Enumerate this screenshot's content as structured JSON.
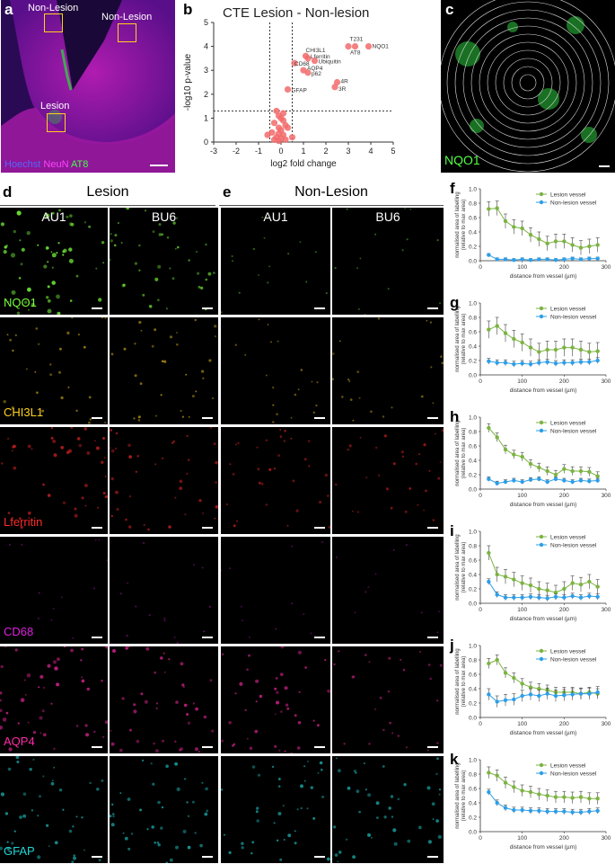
{
  "panel_a": {
    "letter": "a",
    "regions": [
      "Non-Lesion",
      "Non-Lesion",
      "Lesion"
    ],
    "legend": [
      "Hoechst",
      "NeuN",
      "AT8"
    ],
    "legend_colors": [
      "#3a4bff",
      "#ff33ff",
      "#33ee33"
    ]
  },
  "panel_b": {
    "letter": "b",
    "title": "CTE Lesion - Non-lesion",
    "point_labels": [
      "T231",
      "NQO1",
      "AT8",
      "CHI3L1",
      "Lferritin",
      "Ubiquitin",
      "CD68",
      "AQP4",
      "p62",
      "GFAP",
      "4R",
      "3R"
    ]
  },
  "panel_c": {
    "letter": "c",
    "label": "NQO1"
  },
  "panel_d": {
    "letter": "d",
    "header": "Lesion",
    "cols": [
      "AU1",
      "BU6"
    ]
  },
  "panel_e": {
    "letter": "e",
    "header": "Non-Lesion",
    "cols": [
      "AU1",
      "BU6"
    ]
  },
  "rows": [
    {
      "marker": "NQO1",
      "color": "#7cff3c"
    },
    {
      "marker": "CHI3L1",
      "color": "#ffd21e"
    },
    {
      "marker": "Lferritin",
      "color": "#ff2a2a"
    },
    {
      "marker": "CD68",
      "color": "#e020e0"
    },
    {
      "marker": "AQP4",
      "color": "#ff2aa8"
    },
    {
      "marker": "GFAP",
      "color": "#22d7d7"
    }
  ],
  "line_panels": {
    "letters": [
      "f",
      "g",
      "h",
      "i",
      "j",
      "k"
    ],
    "legend": [
      "Lesion vessel",
      "Non-lesion vessel"
    ],
    "colors": [
      "#7cb342",
      "#2d9ee8"
    ]
  },
  "chart_data": [
    {
      "type": "scatter",
      "title": "CTE Lesion - Non-lesion",
      "xlabel": "log2 fold change",
      "ylabel": "-log10 p-value",
      "xlim": [
        -3,
        5
      ],
      "ylim": [
        0,
        5
      ],
      "xticks": [
        "-3",
        "-2",
        "-1",
        "0",
        "1",
        "2",
        "3",
        "4",
        "5"
      ],
      "yticks": [
        "0",
        "1",
        "2",
        "3",
        "4",
        "5"
      ],
      "threshold_lines": {
        "x": [
          -0.5,
          0.5
        ],
        "y": 1.3
      },
      "labeled_points": [
        {
          "label": "T231",
          "x": 3.3,
          "y": 4.0
        },
        {
          "label": "NQO1",
          "x": 3.9,
          "y": 4.0
        },
        {
          "label": "AT8",
          "x": 3.0,
          "y": 4.0
        },
        {
          "label": "CHI3L1",
          "x": 1.1,
          "y": 3.6
        },
        {
          "label": "Lferritin",
          "x": 1.2,
          "y": 3.5
        },
        {
          "label": "Ubiquitin",
          "x": 1.5,
          "y": 3.4
        },
        {
          "label": "CD68",
          "x": 0.6,
          "y": 3.3
        },
        {
          "label": "AQP4",
          "x": 1.0,
          "y": 3.0
        },
        {
          "label": "p62",
          "x": 1.2,
          "y": 2.9
        },
        {
          "label": "GFAP",
          "x": 0.3,
          "y": 2.2
        },
        {
          "label": "4R",
          "x": 2.5,
          "y": 2.5
        },
        {
          "label": "3R",
          "x": 2.4,
          "y": 2.3
        }
      ],
      "other_points": [
        {
          "x": -0.2,
          "y": 1.3
        },
        {
          "x": -0.1,
          "y": 1.1
        },
        {
          "x": 0.1,
          "y": 1.2
        },
        {
          "x": 0.0,
          "y": 1.0
        },
        {
          "x": -0.3,
          "y": 0.8
        },
        {
          "x": 0.2,
          "y": 0.7
        },
        {
          "x": -0.1,
          "y": 0.6
        },
        {
          "x": 0.0,
          "y": 0.5
        },
        {
          "x": -0.4,
          "y": 0.4
        },
        {
          "x": 0.1,
          "y": 0.3
        },
        {
          "x": -0.2,
          "y": 0.2
        },
        {
          "x": 0.2,
          "y": 0.1
        },
        {
          "x": -0.1,
          "y": 0.05
        },
        {
          "x": 0.0,
          "y": 0.15
        },
        {
          "x": -0.6,
          "y": 0.3
        },
        {
          "x": 0.5,
          "y": 0.2
        },
        {
          "x": 0.3,
          "y": 0.6
        },
        {
          "x": -0.3,
          "y": 0.1
        },
        {
          "x": 0.1,
          "y": 0.9
        },
        {
          "x": -0.1,
          "y": 0.35
        }
      ]
    },
    {
      "type": "line",
      "ylabel": "normalised area of labelling (relative to max area)",
      "xlabel": "distance from vessel (µm)",
      "xlim": [
        0,
        300
      ],
      "ylim": [
        0,
        1.0
      ],
      "x": [
        20,
        40,
        60,
        80,
        100,
        120,
        140,
        160,
        180,
        200,
        220,
        240,
        260,
        280
      ],
      "series": [
        {
          "name": "Lesion vessel",
          "values": [
            0.72,
            0.73,
            0.55,
            0.47,
            0.45,
            0.36,
            0.3,
            0.24,
            0.27,
            0.27,
            0.22,
            0.18,
            0.2,
            0.22
          ],
          "err": 0.1
        },
        {
          "name": "Non-lesion vessel",
          "values": [
            0.08,
            0.02,
            0.02,
            0.01,
            0.02,
            0.01,
            0.02,
            0.02,
            0.01,
            0.02,
            0.03,
            0.02,
            0.03,
            0.03
          ],
          "err": 0.02
        }
      ]
    },
    {
      "type": "line",
      "ylabel": "normalised area of labelling (relative to max area)",
      "xlabel": "distance from vessel (µm)",
      "xlim": [
        0,
        300
      ],
      "ylim": [
        0,
        1.0
      ],
      "x": [
        20,
        40,
        60,
        80,
        100,
        120,
        140,
        160,
        180,
        200,
        220,
        240,
        260,
        280
      ],
      "series": [
        {
          "name": "Lesion vessel",
          "values": [
            0.63,
            0.68,
            0.58,
            0.5,
            0.45,
            0.38,
            0.32,
            0.35,
            0.35,
            0.38,
            0.38,
            0.35,
            0.32,
            0.33
          ],
          "err": 0.12
        },
        {
          "name": "Non-lesion vessel",
          "values": [
            0.19,
            0.17,
            0.17,
            0.15,
            0.16,
            0.15,
            0.17,
            0.18,
            0.16,
            0.17,
            0.17,
            0.18,
            0.18,
            0.2
          ],
          "err": 0.04
        }
      ]
    },
    {
      "type": "line",
      "ylabel": "normalised area of labelling (relative to max area)",
      "xlabel": "distance from vessel (µm)",
      "xlim": [
        0,
        300
      ],
      "ylim": [
        0,
        1.0
      ],
      "x": [
        20,
        40,
        60,
        80,
        100,
        120,
        140,
        160,
        180,
        200,
        220,
        240,
        260,
        280
      ],
      "series": [
        {
          "name": "Lesion vessel",
          "values": [
            0.85,
            0.72,
            0.55,
            0.48,
            0.45,
            0.35,
            0.3,
            0.25,
            0.2,
            0.28,
            0.25,
            0.25,
            0.24,
            0.18
          ],
          "err": 0.06
        },
        {
          "name": "Non-lesion vessel",
          "values": [
            0.14,
            0.08,
            0.1,
            0.12,
            0.1,
            0.13,
            0.14,
            0.1,
            0.14,
            0.12,
            0.1,
            0.12,
            0.11,
            0.12
          ],
          "err": 0.03
        }
      ]
    },
    {
      "type": "line",
      "ylabel": "normalised area of labelling (relative to max area)",
      "xlabel": "distance from vessel (µm)",
      "xlim": [
        0,
        300
      ],
      "ylim": [
        0,
        1.0
      ],
      "x": [
        20,
        40,
        60,
        80,
        100,
        120,
        140,
        160,
        180,
        200,
        220,
        240,
        260,
        280
      ],
      "series": [
        {
          "name": "Lesion vessel",
          "values": [
            0.7,
            0.4,
            0.37,
            0.33,
            0.28,
            0.25,
            0.2,
            0.18,
            0.15,
            0.2,
            0.28,
            0.26,
            0.3,
            0.23
          ],
          "err": 0.1
        },
        {
          "name": "Non-lesion vessel",
          "values": [
            0.3,
            0.12,
            0.08,
            0.08,
            0.08,
            0.09,
            0.08,
            0.07,
            0.09,
            0.08,
            0.1,
            0.08,
            0.1,
            0.09
          ],
          "err": 0.04
        }
      ]
    },
    {
      "type": "line",
      "ylabel": "normalised area of labelling (relative to max area)",
      "xlabel": "distance from vessel (µm)",
      "xlim": [
        0,
        300
      ],
      "ylim": [
        0,
        1.0
      ],
      "x": [
        20,
        40,
        60,
        80,
        100,
        120,
        140,
        160,
        180,
        200,
        220,
        240,
        260,
        280
      ],
      "series": [
        {
          "name": "Lesion vessel",
          "values": [
            0.75,
            0.8,
            0.62,
            0.55,
            0.47,
            0.42,
            0.4,
            0.38,
            0.35,
            0.35,
            0.35,
            0.33,
            0.35,
            0.33
          ],
          "err": 0.07
        },
        {
          "name": "Non-lesion vessel",
          "values": [
            0.32,
            0.22,
            0.24,
            0.25,
            0.3,
            0.32,
            0.3,
            0.33,
            0.3,
            0.31,
            0.32,
            0.33,
            0.33,
            0.35
          ],
          "err": 0.08
        }
      ]
    },
    {
      "type": "line",
      "ylabel": "normalised area of labelling (relative to max area)",
      "xlabel": "distance from vessel (µm)",
      "xlim": [
        0,
        300
      ],
      "ylim": [
        0,
        1.0
      ],
      "x": [
        20,
        40,
        60,
        80,
        100,
        120,
        140,
        160,
        180,
        200,
        220,
        240,
        260,
        280
      ],
      "series": [
        {
          "name": "Lesion vessel",
          "values": [
            0.82,
            0.78,
            0.68,
            0.62,
            0.57,
            0.55,
            0.52,
            0.5,
            0.48,
            0.48,
            0.47,
            0.48,
            0.46,
            0.46
          ],
          "err": 0.08
        },
        {
          "name": "Non-lesion vessel",
          "values": [
            0.55,
            0.4,
            0.33,
            0.3,
            0.3,
            0.29,
            0.29,
            0.28,
            0.28,
            0.28,
            0.27,
            0.27,
            0.28,
            0.29
          ],
          "err": 0.04
        }
      ]
    }
  ]
}
